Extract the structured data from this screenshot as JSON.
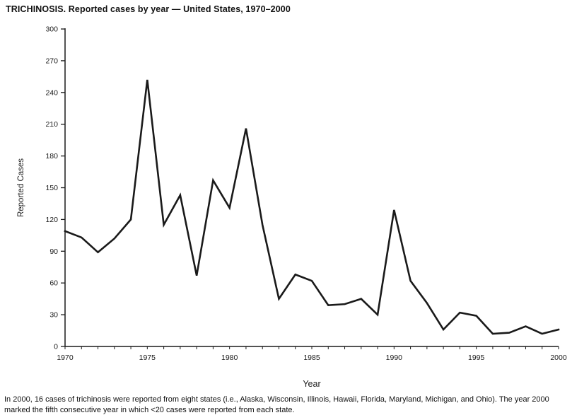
{
  "chart_data": {
    "type": "line",
    "title": "TRICHINOSIS. Reported cases by year — United States, 1970–2000",
    "xlabel": "Year",
    "ylabel": "Reported Cases",
    "x": [
      1970,
      1971,
      1972,
      1973,
      1974,
      1975,
      1976,
      1977,
      1978,
      1979,
      1980,
      1981,
      1982,
      1983,
      1984,
      1985,
      1986,
      1987,
      1988,
      1989,
      1990,
      1991,
      1992,
      1993,
      1994,
      1995,
      1996,
      1997,
      1998,
      1999,
      2000
    ],
    "values": [
      109,
      103,
      89,
      102,
      120,
      252,
      115,
      143,
      67,
      157,
      131,
      206,
      115,
      45,
      68,
      62,
      39,
      40,
      45,
      30,
      129,
      62,
      41,
      16,
      32,
      29,
      12,
      13,
      19,
      12,
      16
    ],
    "ylim": [
      0,
      300
    ],
    "yticks": [
      0,
      30,
      60,
      90,
      120,
      150,
      180,
      210,
      240,
      270,
      300
    ],
    "xticks_labeled": [
      1970,
      1975,
      1980,
      1985,
      1990,
      1995,
      2000
    ],
    "x_minor_tick_every": 1,
    "line_color": "#1a1a1a",
    "grid": false,
    "legend": "none"
  },
  "footnote": "In 2000, 16 cases of trichinosis were reported from eight states (i.e., Alaska, Wisconsin, Illinois, Hawaii, Florida, Maryland, Michigan, and Ohio). The year 2000 marked the fifth consecutive year in which <20 cases were reported from each state."
}
